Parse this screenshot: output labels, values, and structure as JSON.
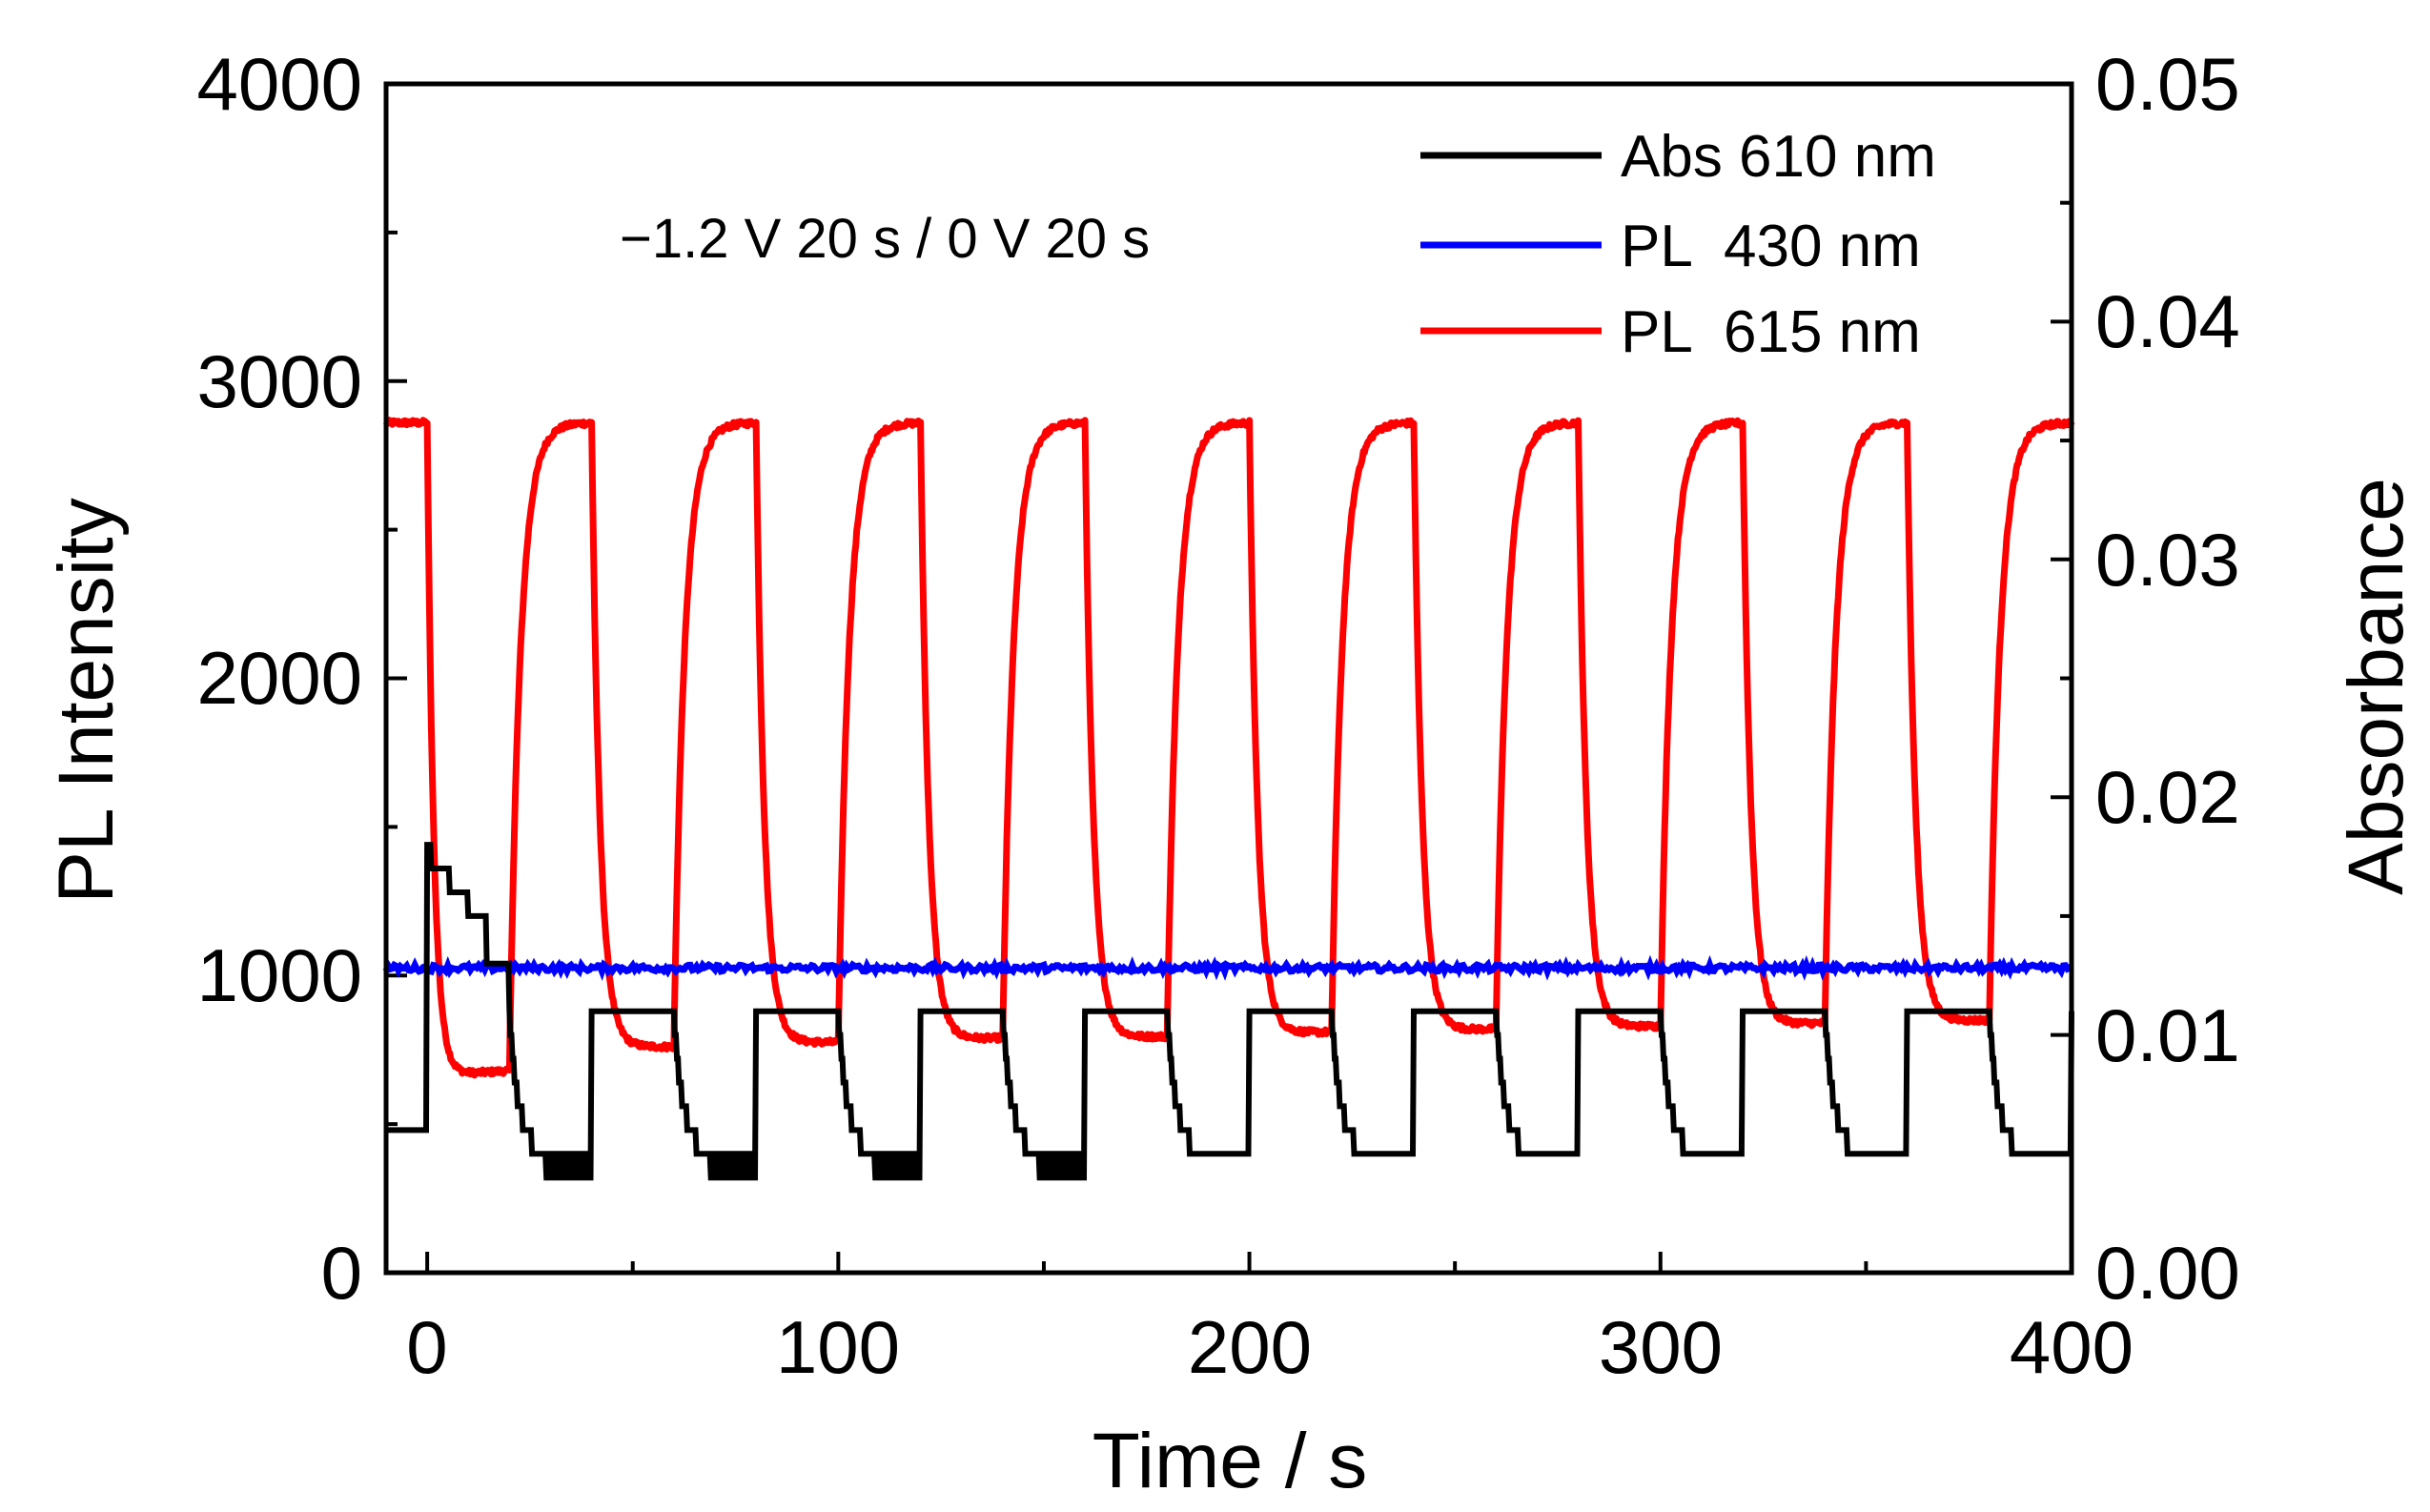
{
  "chart_data": {
    "type": "line",
    "title": "",
    "annotation": "−1.2 V 20 s / 0 V 20 s",
    "xlabel": "Time / s",
    "ylabel": "PL Intensity",
    "y2label": "Absorbance",
    "xlim": [
      -10,
      400
    ],
    "ylim": [
      0,
      4000
    ],
    "y2lim": [
      0.0,
      0.05
    ],
    "xticks": [
      "0",
      "100",
      "200",
      "300",
      "400"
    ],
    "yticks": [
      "0",
      "1000",
      "2000",
      "3000",
      "4000"
    ],
    "y2ticks": [
      "0.00",
      "0.01",
      "0.02",
      "0.03",
      "0.04",
      "0.05"
    ],
    "legend_position": "top-right",
    "voltage_cycle": {
      "on_voltage_V": -1.2,
      "on_duration_s": 20,
      "off_voltage_V": 0,
      "off_duration_s": 20,
      "period_s": 40,
      "first_step_s": 0
    },
    "series": [
      {
        "name": "Abs 610 nm",
        "axis": "right",
        "color": "#000000",
        "baseline": 0.006,
        "first_peak": 0.018,
        "first_cycle_levels": [
          0.017,
          0.016,
          0.015,
          0.013
        ],
        "reduced_level": 0.011,
        "low_level": 0.005
      },
      {
        "name": "PL  430 nm",
        "axis": "left",
        "color": "#0000ff",
        "level": 1025
      },
      {
        "name": "PL  615 nm",
        "axis": "left",
        "color": "#ff0000",
        "high_level": 2860,
        "low_levels_per_cycle": [
          680,
          760,
          775,
          790,
          795,
          810,
          820,
          830,
          840,
          850
        ],
        "low_levels_start": [
          660,
          760,
          775,
          785,
          790,
          805,
          815,
          825,
          835,
          845
        ]
      }
    ]
  }
}
